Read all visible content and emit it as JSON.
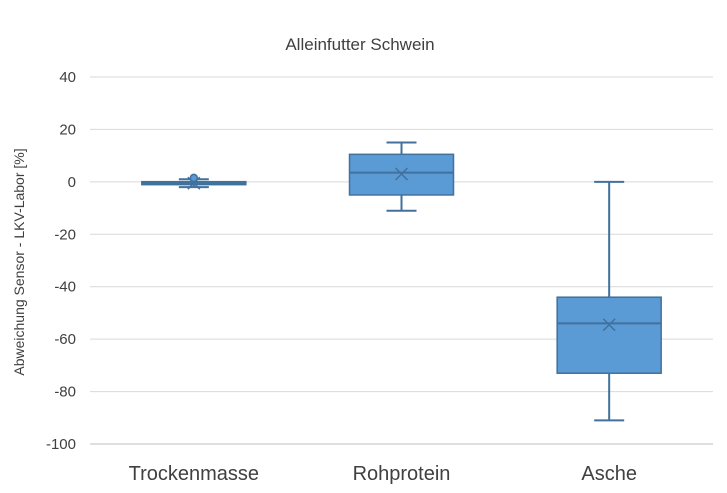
{
  "chart_data": {
    "type": "boxplot",
    "title": "Alleinfutter Schwein",
    "xlabel": "",
    "ylabel": "Abweichung Sensor - LKV-Labor [%]",
    "ylim": [
      -100,
      40
    ],
    "yticks": [
      40,
      20,
      0,
      -20,
      -40,
      -60,
      -80,
      -100
    ],
    "grid": true,
    "legend": "none",
    "colors": {
      "box_fill": "#5b9bd5",
      "box_stroke": "#41719c",
      "grid": "#d9d9d9",
      "axis": "#bfbfbf",
      "text": "#404040"
    },
    "categories": [
      "Trockenmasse",
      "Rohprotein",
      "Asche"
    ],
    "boxes": [
      {
        "min": -2,
        "q1": -1,
        "median": -0.5,
        "q3": 0,
        "max": 1,
        "mean": -0.5,
        "outliers": [
          1.5
        ]
      },
      {
        "min": -11,
        "q1": -5,
        "median": 3.5,
        "q3": 10.5,
        "max": 15,
        "mean": 3,
        "outliers": []
      },
      {
        "min": -91,
        "q1": -73,
        "median": -54,
        "q3": -44,
        "max": 0,
        "mean": -54.5,
        "outliers": []
      }
    ]
  }
}
